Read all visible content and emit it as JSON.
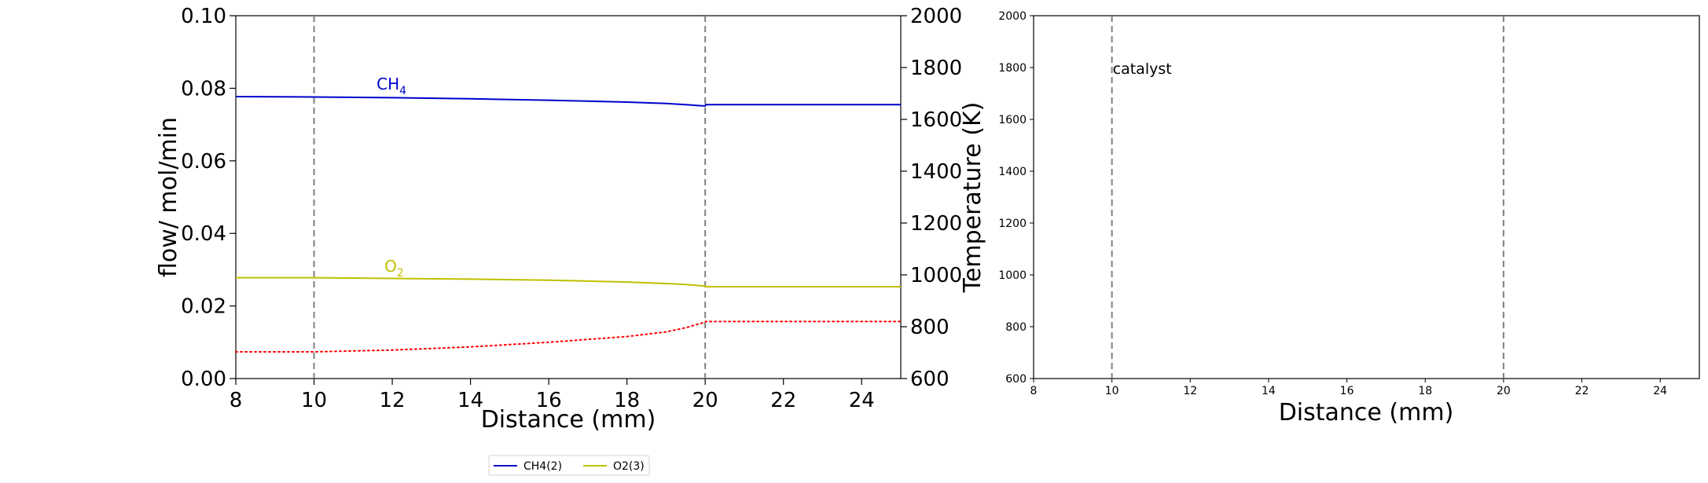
{
  "chart_data": [
    {
      "type": "line",
      "xlabel": "Distance (mm)",
      "ylabel": "flow/ mol/min",
      "y2label": "Temperature (K)",
      "xlim": [
        8,
        25
      ],
      "ylim": [
        0,
        0.1
      ],
      "y2lim": [
        600,
        2000
      ],
      "xticks": [
        8,
        10,
        12,
        14,
        16,
        18,
        20,
        22,
        24
      ],
      "yticks": [
        "0.00",
        "0.02",
        "0.04",
        "0.06",
        "0.08",
        "0.10"
      ],
      "y2ticks": [
        600,
        800,
        1000,
        1200,
        1400,
        1600,
        1800,
        2000
      ],
      "vlines": [
        10,
        20
      ],
      "grid": false,
      "series": [
        {
          "name": "CH4(2)",
          "color": "#0000cc",
          "style": "solid",
          "axis": "left",
          "label": "CH",
          "label_sub": "4",
          "label_at": [
            11.6,
            0.0797
          ],
          "x": [
            8,
            10,
            12,
            14,
            16,
            18,
            19,
            19.5,
            20,
            20.01,
            25
          ],
          "y": [
            0.0777,
            0.0776,
            0.0774,
            0.0771,
            0.0767,
            0.0762,
            0.0758,
            0.0755,
            0.0751,
            0.0755,
            0.0755
          ]
        },
        {
          "name": "O2(3)",
          "color": "#bfbf00",
          "style": "solid",
          "axis": "left",
          "label": "O",
          "label_sub": "2",
          "label_at": [
            11.8,
            0.0294
          ],
          "x": [
            8,
            10,
            12,
            14,
            16,
            18,
            19,
            19.5,
            20,
            20.01,
            25
          ],
          "y": [
            0.0278,
            0.0278,
            0.0276,
            0.0274,
            0.0271,
            0.0266,
            0.0262,
            0.0259,
            0.0255,
            0.0253,
            0.0253
          ]
        },
        {
          "color": "#ff0000",
          "style": "dotted",
          "axis": "right",
          "x": [
            8,
            10,
            12,
            14,
            16,
            18,
            19,
            19.5,
            20,
            20.01,
            25
          ],
          "y": [
            703,
            703,
            710,
            722,
            740,
            762,
            780,
            796,
            818,
            820,
            820
          ]
        }
      ],
      "legend": {
        "placement": "bottom-center",
        "entries": [
          {
            "label": "CH4(2)",
            "color": "#0000cc"
          },
          {
            "label": "O2(3)",
            "color": "#bfbf00"
          }
        ]
      }
    },
    {
      "type": "line",
      "xlabel": "Distance (mm)",
      "ylabel": "",
      "xlim": [
        8,
        25
      ],
      "ylim": [
        600,
        2000
      ],
      "xticks": [
        8,
        10,
        12,
        14,
        16,
        18,
        20,
        22,
        24
      ],
      "yticks": [
        600,
        800,
        1000,
        1200,
        1400,
        1600,
        1800,
        2000
      ],
      "vlines": [
        10,
        20
      ],
      "grid": false,
      "annotation": {
        "text": "catalyst",
        "x": 10,
        "y": 1800
      },
      "series": []
    }
  ]
}
